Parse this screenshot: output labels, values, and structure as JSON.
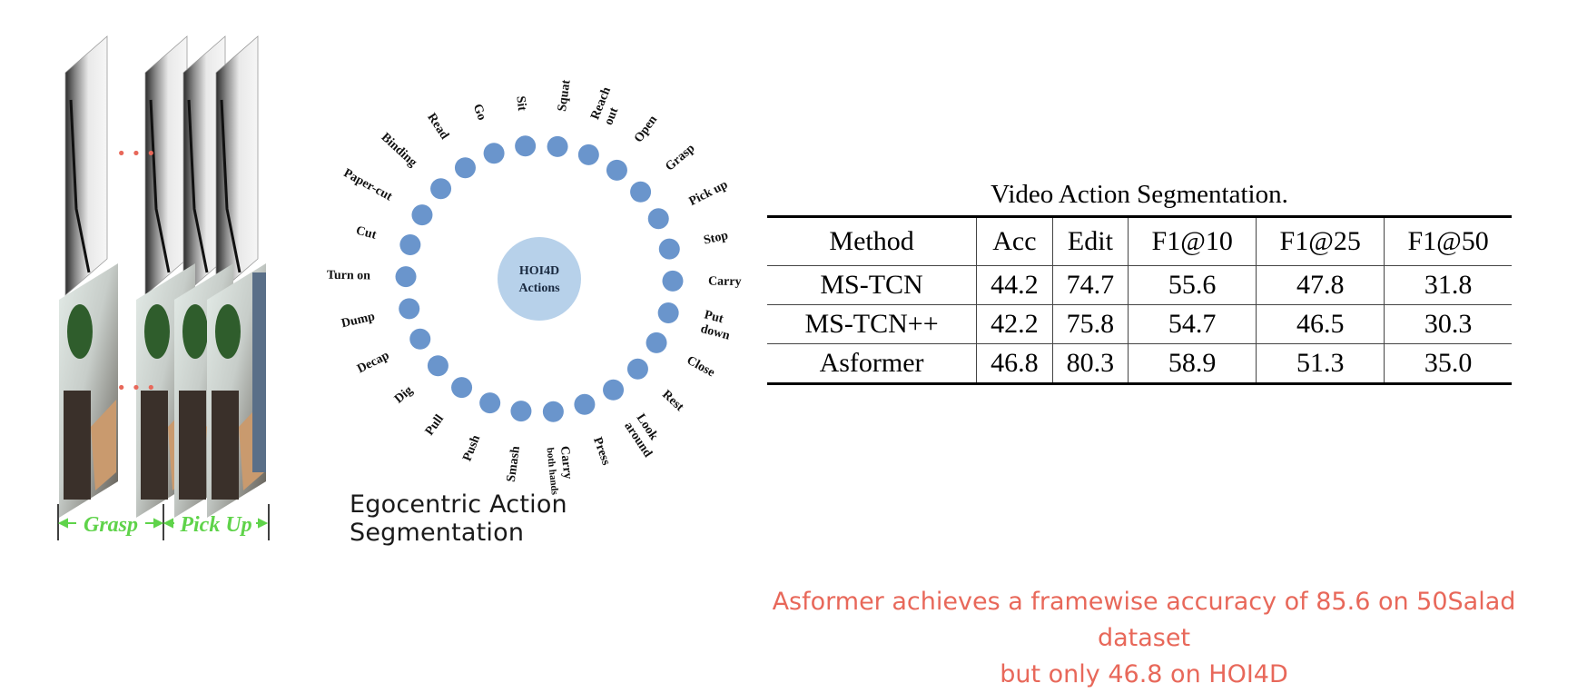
{
  "frames": {
    "ellipsis_top": "• • •",
    "ellipsis_bottom": "• • •",
    "segments": [
      {
        "label": "Grasp"
      },
      {
        "label": "Pick Up"
      }
    ],
    "colors": {
      "ellipsis": "#e8685a",
      "segment": "#5fd34a"
    }
  },
  "wheel": {
    "center_label_line1": "HOI4D",
    "center_label_line2": "Actions",
    "caption": "Egocentric Action Segmentation",
    "colors": {
      "dot": "#6a95cc",
      "center": "#b7d1ea"
    },
    "actions": [
      {
        "lines": [
          "Sit"
        ]
      },
      {
        "lines": [
          "Squat"
        ]
      },
      {
        "lines": [
          "Reach",
          "out"
        ]
      },
      {
        "lines": [
          "Open"
        ]
      },
      {
        "lines": [
          "Grasp"
        ]
      },
      {
        "lines": [
          "Pick up"
        ]
      },
      {
        "lines": [
          "Stop"
        ]
      },
      {
        "lines": [
          "Carry"
        ]
      },
      {
        "lines": [
          "Put",
          "down"
        ]
      },
      {
        "lines": [
          "Close"
        ]
      },
      {
        "lines": [
          "Rest"
        ]
      },
      {
        "lines": [
          "Look",
          "around"
        ]
      },
      {
        "lines": [
          "Press"
        ]
      },
      {
        "lines": [
          "Carry",
          "both hands"
        ]
      },
      {
        "lines": [
          "Smash"
        ]
      },
      {
        "lines": [
          "Push"
        ]
      },
      {
        "lines": [
          "Pull"
        ]
      },
      {
        "lines": [
          "Dig"
        ]
      },
      {
        "lines": [
          "Decap"
        ]
      },
      {
        "lines": [
          "Dump"
        ]
      },
      {
        "lines": [
          "Turn on"
        ]
      },
      {
        "lines": [
          "Cut"
        ]
      },
      {
        "lines": [
          "Paper-cut"
        ]
      },
      {
        "lines": [
          "Binding"
        ]
      },
      {
        "lines": [
          "Read"
        ]
      },
      {
        "lines": [
          "Go"
        ]
      }
    ]
  },
  "table": {
    "title": "Video Action Segmentation.",
    "headers": [
      "Method",
      "Acc",
      "Edit",
      "F1@10",
      "F1@25",
      "F1@50"
    ],
    "rows": [
      [
        "MS-TCN",
        "44.2",
        "74.7",
        "55.6",
        "47.8",
        "31.8"
      ],
      [
        "MS-TCN++",
        "42.2",
        "75.8",
        "54.7",
        "46.5",
        "30.3"
      ],
      [
        "Asformer",
        "46.8",
        "80.3",
        "58.9",
        "51.3",
        "35.0"
      ]
    ]
  },
  "note": {
    "line1": "Asformer achieves a framewise accuracy of 85.6 on 50Salad dataset",
    "line2": "but only 46.8 on HOI4D"
  }
}
